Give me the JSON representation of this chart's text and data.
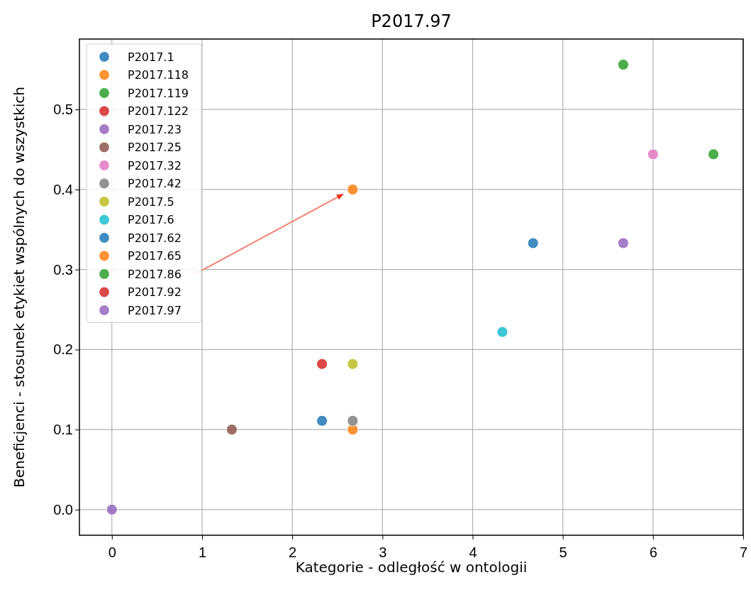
{
  "chart_data": {
    "type": "scatter",
    "title": "P2017.97",
    "xlabel": "Kategorie - odległość w ontologii",
    "ylabel": "Beneficjenci - stosunek etykiet wspólnych do wszystkich",
    "xlim": [
      -0.36,
      7
    ],
    "xticks": [
      0,
      1,
      2,
      3,
      4,
      5,
      6,
      7
    ],
    "ylim": [
      -0.032,
      0.588
    ],
    "yticks": [
      {
        "value": 0,
        "label": "0.0"
      },
      0.1,
      0.2,
      0.3,
      0.4,
      0.5
    ],
    "grid": true,
    "legend": "top left",
    "marker": "circle",
    "series": [
      {
        "name": "P2017.1",
        "color": "#1f77b4",
        "x": [
          2.33
        ],
        "values": [
          0.111
        ]
      },
      {
        "name": "P2017.118",
        "color": "#ff7f0e",
        "x": [
          2.67
        ],
        "values": [
          0.1
        ]
      },
      {
        "name": "P2017.119",
        "color": "#2ca02c",
        "x": [
          5.67
        ],
        "values": [
          0.556
        ]
      },
      {
        "name": "P2017.122",
        "color": "#d62728",
        "x": [
          2.33
        ],
        "values": [
          0.182
        ]
      },
      {
        "name": "P2017.23",
        "color": "#9467bd",
        "x": [
          5.67
        ],
        "values": [
          0.333
        ]
      },
      {
        "name": "P2017.25",
        "color": "#8c564b",
        "x": [
          1.33
        ],
        "values": [
          0.1
        ]
      },
      {
        "name": "P2017.32",
        "color": "#e377c2",
        "x": [
          6
        ],
        "values": [
          0.444
        ]
      },
      {
        "name": "P2017.42",
        "color": "#7f7f7f",
        "x": [
          2.67
        ],
        "values": [
          0.111
        ]
      },
      {
        "name": "P2017.5",
        "color": "#bcbd22",
        "x": [
          2.67
        ],
        "values": [
          0.182
        ]
      },
      {
        "name": "P2017.6",
        "color": "#17becf",
        "x": [
          4.33
        ],
        "values": [
          0.222
        ]
      },
      {
        "name": "P2017.62",
        "color": "#1f77b4",
        "x": [
          4.67
        ],
        "values": [
          0.333
        ]
      },
      {
        "name": "P2017.65",
        "color": "#ff7f0e",
        "x": [
          2.67
        ],
        "values": [
          0.4
        ]
      },
      {
        "name": "P2017.86",
        "color": "#2ca02c",
        "x": [
          6.67
        ],
        "values": [
          0.444
        ]
      },
      {
        "name": "P2017.92",
        "color": "#d62728",
        "x": [
          null
        ],
        "values": [
          null
        ]
      },
      {
        "name": "P2017.97",
        "color": "#9467bd",
        "x": [
          0
        ],
        "values": [
          0
        ]
      }
    ]
  }
}
